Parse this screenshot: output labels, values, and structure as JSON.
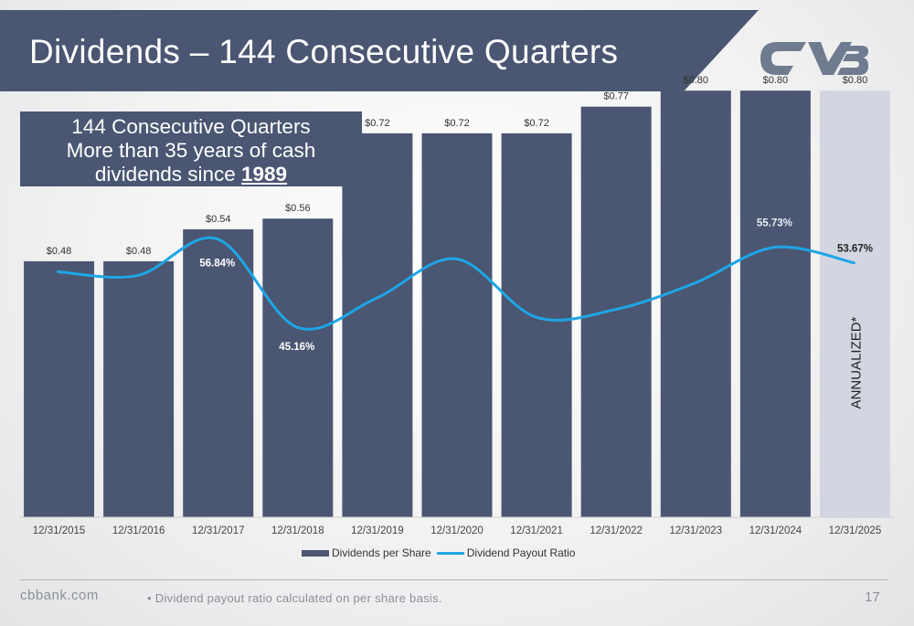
{
  "header": {
    "title": "Dividends – 144 Consecutive Quarters",
    "band_color": "#4a5672"
  },
  "logo": {
    "name": "cvb-logo",
    "color": "#6f7b8e"
  },
  "callout": {
    "line1": "144 Consecutive Quarters",
    "line2": "More than 35 years of cash",
    "line3_prefix": "dividends since ",
    "line3_year": "1989"
  },
  "chart_data": {
    "type": "bar",
    "categories": [
      "12/31/2015",
      "12/31/2016",
      "12/31/2017",
      "12/31/2018",
      "12/31/2019",
      "12/31/2020",
      "12/31/2021",
      "12/31/2022",
      "12/31/2023",
      "12/31/2024",
      "12/31/2025"
    ],
    "series": [
      {
        "name": "Dividends per Share",
        "type": "bar",
        "color": "#4a5672",
        "values": [
          0.48,
          0.48,
          0.54,
          0.56,
          0.72,
          0.72,
          0.72,
          0.77,
          0.8,
          0.8,
          0.8
        ],
        "labels": [
          "$0.48",
          "$0.48",
          "$0.54",
          "$0.56",
          "$0.72",
          "$0.72",
          "$0.72",
          "$0.77",
          "$0.80",
          "$0.80",
          "$0.80"
        ],
        "highlight_last_color": "#d3d6e1"
      },
      {
        "name": "Dividend Payout Ratio",
        "type": "line",
        "color": "#1ea6e6",
        "values": [
          52.5,
          52.0,
          56.84,
          45.16,
          49.0,
          54.2,
          46.5,
          47.5,
          51.0,
          55.73,
          53.67
        ],
        "labels": [
          "",
          "",
          "56.84%",
          "45.16%",
          "",
          "",
          "",
          "",
          "",
          "55.73%",
          "53.67%"
        ]
      }
    ],
    "ylim": [
      0,
      0.85
    ],
    "ylim_ratio": [
      20,
      80
    ],
    "annotations": [
      "ANNUALIZED*"
    ],
    "legend_position": "bottom",
    "grid": false
  },
  "legend": {
    "bar_label": "Dividends per Share",
    "line_label": "Dividend Payout Ratio"
  },
  "footer": {
    "site": "cbbank.com",
    "footnote": "• Dividend payout ratio calculated on per share basis.",
    "page_number": "17"
  }
}
